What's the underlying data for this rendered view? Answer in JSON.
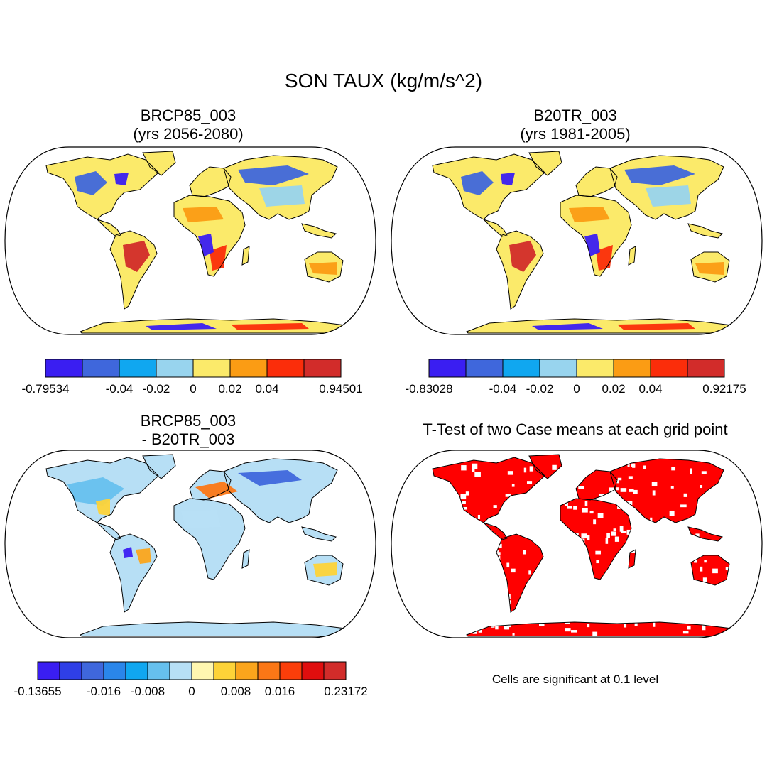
{
  "figure": {
    "title": "SON TAUX (kg/m/s^2)",
    "note": "Cells are significant at 0.1 level"
  },
  "panels": [
    {
      "id": "rcp85",
      "title_line1": "BRCP85_003",
      "title_line2": "(yrs 2056-2080)",
      "colorbar": {
        "colors": [
          "#3a1ef2",
          "#3f67dc",
          "#10a7f0",
          "#98d4ee",
          "#fbea6a",
          "#fb9c14",
          "#fb2d0a",
          "#d22c2a"
        ],
        "labels": [
          "-0.79534",
          "-0.04",
          "-0.02",
          "0",
          "0.02",
          "0.04",
          "0.94501"
        ],
        "label_at_boundary": [
          0,
          2,
          3,
          4,
          5,
          6,
          8
        ]
      }
    },
    {
      "id": "b20tr",
      "title_line1": "B20TR_003",
      "title_line2": "(yrs 1981-2005)",
      "colorbar": {
        "colors": [
          "#3a1ef2",
          "#3f67dc",
          "#10a7f0",
          "#98d4ee",
          "#fbea6a",
          "#fb9c14",
          "#fb2d0a",
          "#d22c2a"
        ],
        "labels": [
          "-0.83028",
          "-0.04",
          "-0.02",
          "0",
          "0.02",
          "0.04",
          "0.92175"
        ],
        "label_at_boundary": [
          0,
          2,
          3,
          4,
          5,
          6,
          8
        ]
      }
    },
    {
      "id": "diff",
      "title_line1": "BRCP85_003",
      "title_line2": "- B20TR_003",
      "colorbar": {
        "colors": [
          "#3a1ef2",
          "#2f3fe6",
          "#3f67dc",
          "#2a86ea",
          "#10a7f0",
          "#66c0ee",
          "#b7dff5",
          "#fff7b0",
          "#fdd338",
          "#fba51c",
          "#fb7716",
          "#fb3e0a",
          "#e00e0e",
          "#d22c2a"
        ],
        "labels": [
          "-0.13655",
          "-0.016",
          "-0.008",
          "0",
          "0.008",
          "0.016",
          "0.23172"
        ],
        "label_at_boundary": [
          0,
          3,
          5,
          7,
          9,
          11,
          14
        ]
      }
    },
    {
      "id": "ttest",
      "title_line1": "T-Test of two Case means at each grid point"
    }
  ]
}
